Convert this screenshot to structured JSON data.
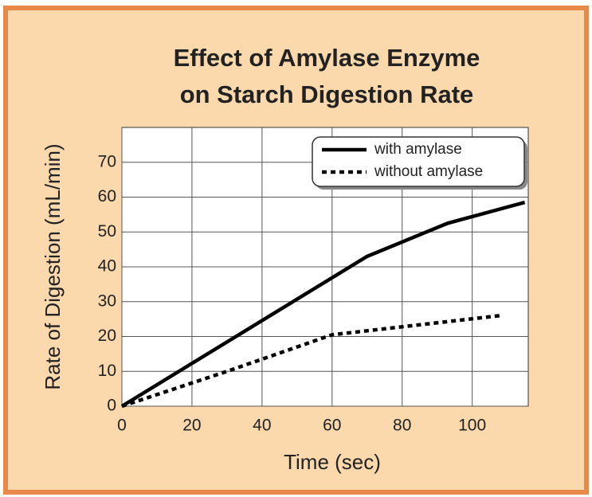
{
  "chart_data": {
    "type": "line",
    "title": [
      "Effect of Amylase Enzyme",
      "on Starch Digestion Rate"
    ],
    "xlabel": "Time (sec)",
    "ylabel": "Rate of Digestion (mL/min)",
    "series": [
      {
        "name": "with amylase",
        "color": "#000000",
        "style": "solid",
        "x": [
          0,
          70,
          93,
          115
        ],
        "values": [
          0,
          43,
          52.5,
          58.5
        ]
      },
      {
        "name": "without amylase",
        "color": "#000000",
        "style": "dotted",
        "x": [
          0,
          30,
          60,
          108
        ],
        "values": [
          0,
          10,
          20.5,
          26
        ]
      }
    ],
    "xlim": [
      0,
      116
    ],
    "xticks": [
      0,
      20,
      40,
      60,
      80,
      100
    ],
    "ylim": [
      0,
      80
    ],
    "yticks": [
      0,
      10,
      20,
      30,
      40,
      50,
      60,
      70
    ],
    "grid": true,
    "legend": "upper right"
  }
}
